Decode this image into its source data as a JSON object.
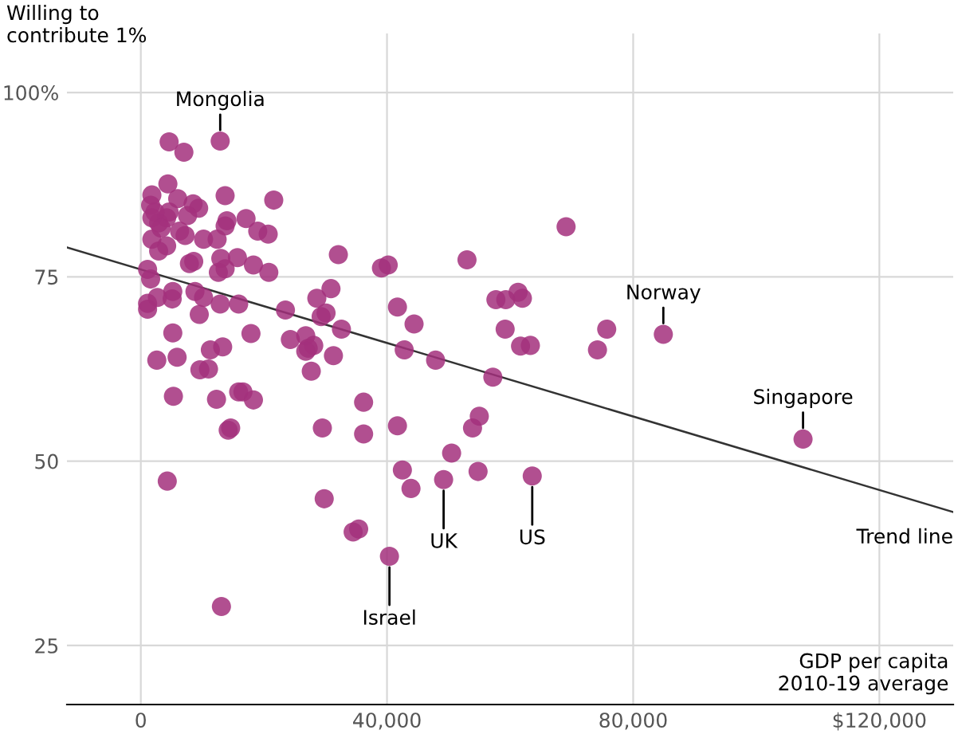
{
  "chart_data": {
    "type": "scatter",
    "ylabel": "Willing to\ncontribute 1%",
    "xlabel": "GDP per capita\n2010-19 average",
    "xlim": [
      -12000,
      132000
    ],
    "ylim": [
      17,
      108
    ],
    "xticks": [
      0,
      {
        "value": 40000,
        "label": "40,000"
      },
      {
        "value": 80000,
        "label": "80,000"
      },
      {
        "value": 120000,
        "label": "$120,000"
      }
    ],
    "yticks": [
      25,
      50,
      75,
      {
        "value": 100,
        "label": "100%"
      }
    ],
    "grid": true,
    "marker": "circle",
    "series": [
      {
        "color": "#a3307c",
        "x": [
          4600,
          7000,
          12900,
          4400,
          6000,
          13700,
          21600,
          1800,
          1600,
          8500,
          9400,
          7600,
          14000,
          17100,
          19000,
          20700,
          13700,
          10200,
          12400,
          1800,
          4200,
          2900,
          6300,
          7200,
          32100,
          7900,
          8600,
          13000,
          15700,
          13700,
          12600,
          18300,
          20800,
          1100,
          1600,
          5200,
          2700,
          8800,
          10200,
          12900,
          15900,
          1100,
          1100,
          5100,
          9500,
          23500,
          28600,
          30900,
          30100,
          29300,
          32600,
          5200,
          17900,
          24300,
          26800,
          27200,
          28100,
          31300,
          2600,
          5900,
          13300,
          11300,
          26800,
          9600,
          11000,
          27700,
          42800,
          5300,
          12300,
          15900,
          16600,
          18300,
          36200,
          14200,
          14600,
          29500,
          36200,
          41700,
          4300,
          29800,
          34500,
          35400,
          40400,
          42500,
          43900,
          13100,
          69100,
          39100,
          40200,
          53000,
          41700,
          44400,
          47900,
          57200,
          57700,
          59300,
          61300,
          62000,
          59200,
          61700,
          63300,
          74200,
          75700,
          55000,
          53900,
          50500,
          49200,
          54800,
          63600,
          84900,
          107600,
          1800,
          2900,
          4200,
          4600,
          2300,
          3300
        ],
        "values": [
          93.3,
          91.9,
          93.4,
          87.6,
          85.6,
          86.0,
          85.4,
          86.1,
          84.7,
          84.9,
          84.3,
          83.3,
          82.6,
          82.9,
          81.2,
          80.8,
          81.9,
          80.1,
          80.1,
          80.1,
          79.2,
          78.5,
          81.2,
          80.6,
          78.0,
          76.8,
          77.1,
          77.5,
          77.6,
          76.1,
          75.6,
          76.6,
          75.6,
          76.0,
          74.7,
          73.0,
          72.2,
          73.0,
          72.2,
          71.3,
          71.3,
          71.4,
          70.6,
          72.0,
          69.9,
          70.5,
          72.1,
          73.4,
          70.1,
          69.6,
          67.9,
          67.4,
          67.3,
          66.5,
          67.0,
          65.3,
          65.7,
          64.3,
          63.7,
          64.1,
          65.5,
          65.1,
          64.9,
          62.4,
          62.5,
          62.2,
          65.1,
          58.8,
          58.4,
          59.4,
          59.4,
          58.3,
          58.0,
          54.2,
          54.5,
          54.5,
          53.7,
          54.8,
          47.3,
          44.9,
          40.4,
          40.8,
          37.1,
          48.8,
          46.3,
          30.3,
          81.8,
          76.2,
          76.6,
          77.3,
          70.9,
          68.6,
          63.7,
          61.4,
          71.9,
          71.9,
          72.9,
          72.1,
          67.9,
          65.6,
          65.7,
          65.1,
          67.9,
          56.1,
          54.5,
          51.1,
          47.5,
          48.6,
          48.0,
          67.2,
          53.0,
          83.0,
          82.3,
          83.0,
          83.8,
          83.8,
          81.6
        ]
      },
      {
        "type": "line",
        "name": "Trend line",
        "color": "#333333",
        "line_style": "solid",
        "marker": "none",
        "x": [
          -12000,
          132000
        ],
        "values": [
          79.0,
          43.1
        ]
      }
    ],
    "annotations": [
      {
        "text": "Mongolia",
        "x": 12900,
        "y": 93.4
      },
      {
        "text": "Israel",
        "x": 40400,
        "y": 37.1
      },
      {
        "text": "UK",
        "x": 49200,
        "y": 47.5
      },
      {
        "text": "US",
        "x": 63600,
        "y": 48.0
      },
      {
        "text": "Norway",
        "x": 84900,
        "y": 67.2
      },
      {
        "text": "Singapore",
        "x": 107600,
        "y": 53.0
      }
    ]
  }
}
